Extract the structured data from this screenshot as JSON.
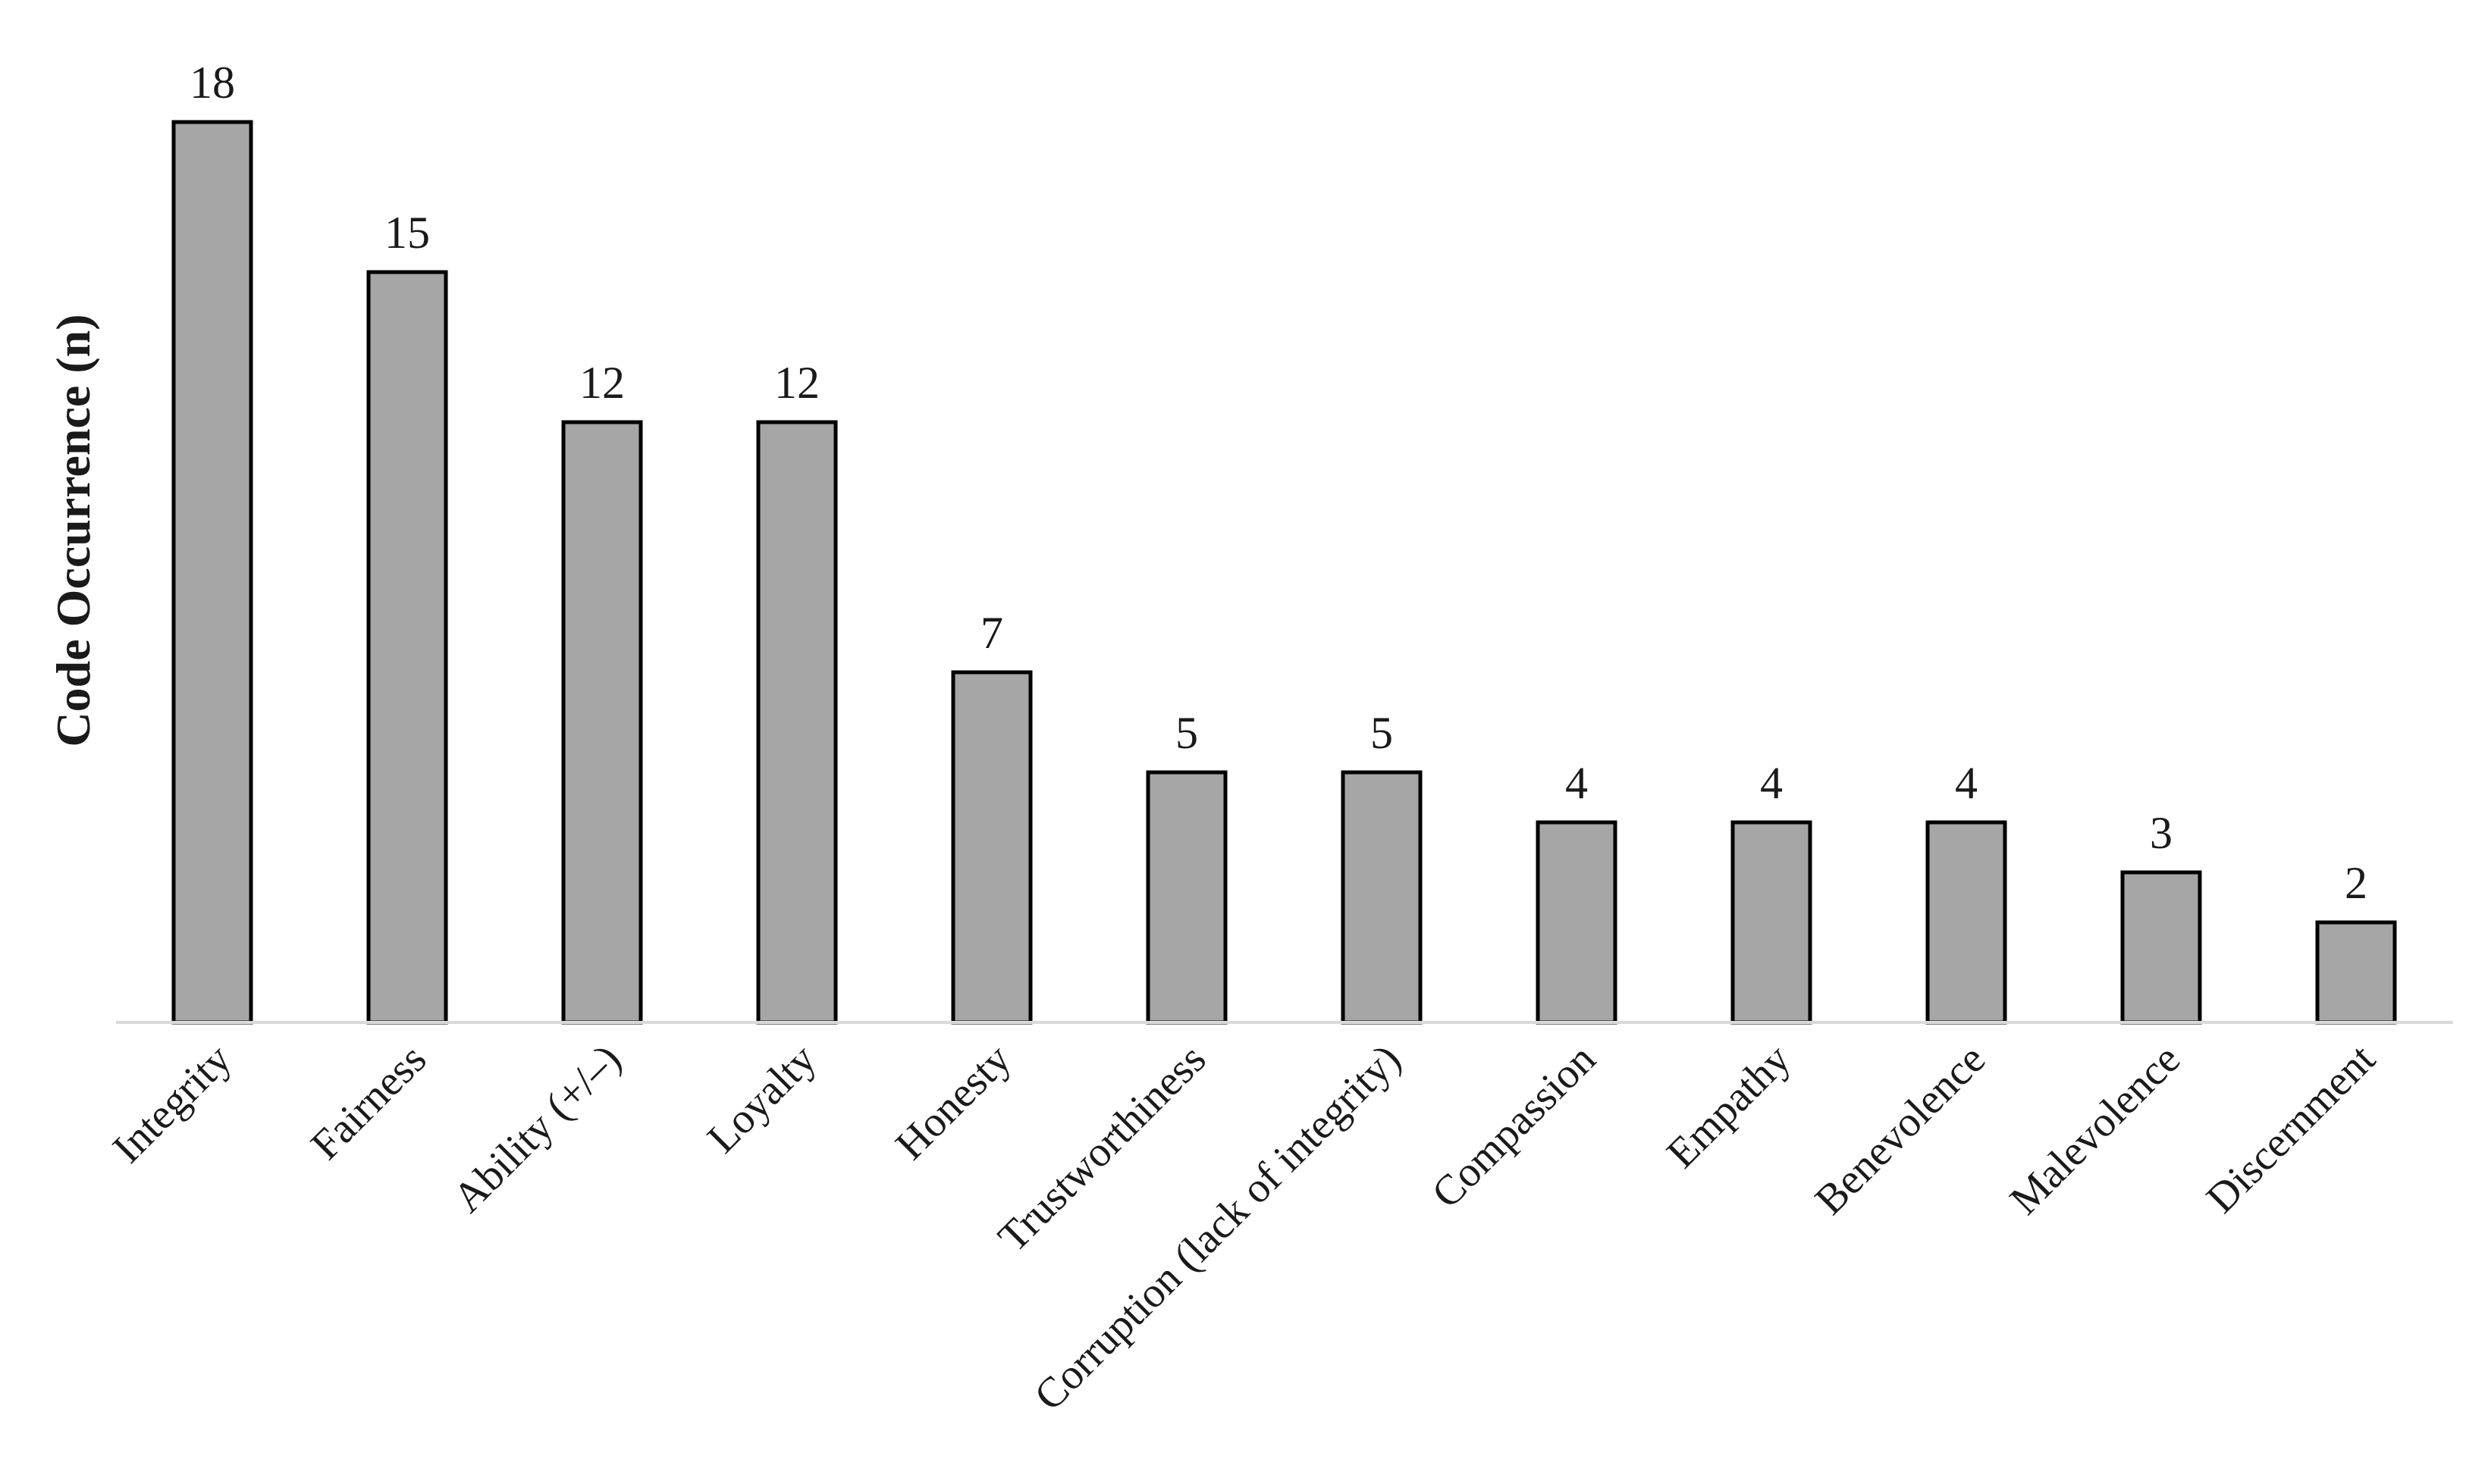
{
  "chart_data": {
    "type": "bar",
    "ylabel": "Code Occurrence (n)",
    "categories": [
      "Integrity",
      "Fairness",
      "Ability (+/–)",
      "Loyalty",
      "Honesty",
      "Trustworthiness",
      "Corruption (lack of integrity)",
      "Compassion",
      "Empathy",
      "Benevolence",
      "Malevolence",
      "Discernment"
    ],
    "values": [
      18,
      15,
      12,
      12,
      7,
      5,
      5,
      4,
      4,
      4,
      3,
      2
    ],
    "color": "#a6a6a6",
    "ylim": [
      0,
      18
    ]
  }
}
